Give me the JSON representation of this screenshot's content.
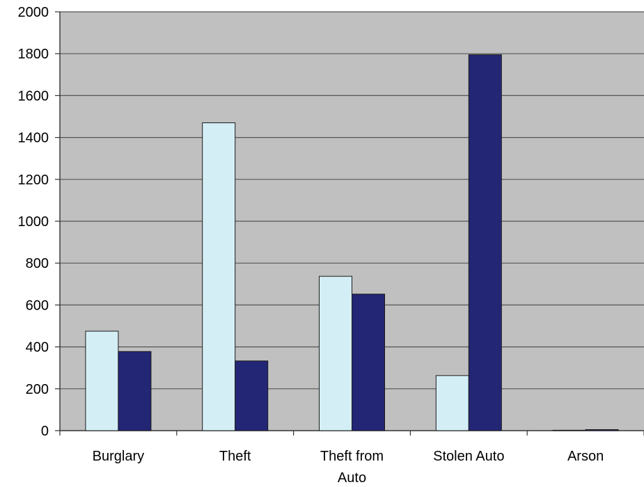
{
  "chart_data": {
    "type": "bar",
    "categories": [
      "Burglary",
      "Theft",
      "Theft from Auto",
      "Stolen Auto",
      "Arson"
    ],
    "category_lines": [
      [
        "Burglary"
      ],
      [
        "Theft"
      ],
      [
        "Theft from",
        "Auto"
      ],
      [
        "Stolen Auto"
      ],
      [
        "Arson"
      ]
    ],
    "series": [
      {
        "values": [
          475,
          1470,
          737,
          263,
          2
        ]
      },
      {
        "values": [
          378,
          333,
          652,
          1795,
          5
        ]
      }
    ],
    "ylim": [
      0,
      2000
    ],
    "yticks": [
      "0",
      "200",
      "400",
      "600",
      "800",
      "1000",
      "1200",
      "1400",
      "1600",
      "1800",
      "2000"
    ],
    "grid": true,
    "legend": "none",
    "colors": {
      "plot_background": "#c0c0c0",
      "gridline": "#555555",
      "series": [
        "#d4eef6",
        "#232675"
      ]
    }
  }
}
